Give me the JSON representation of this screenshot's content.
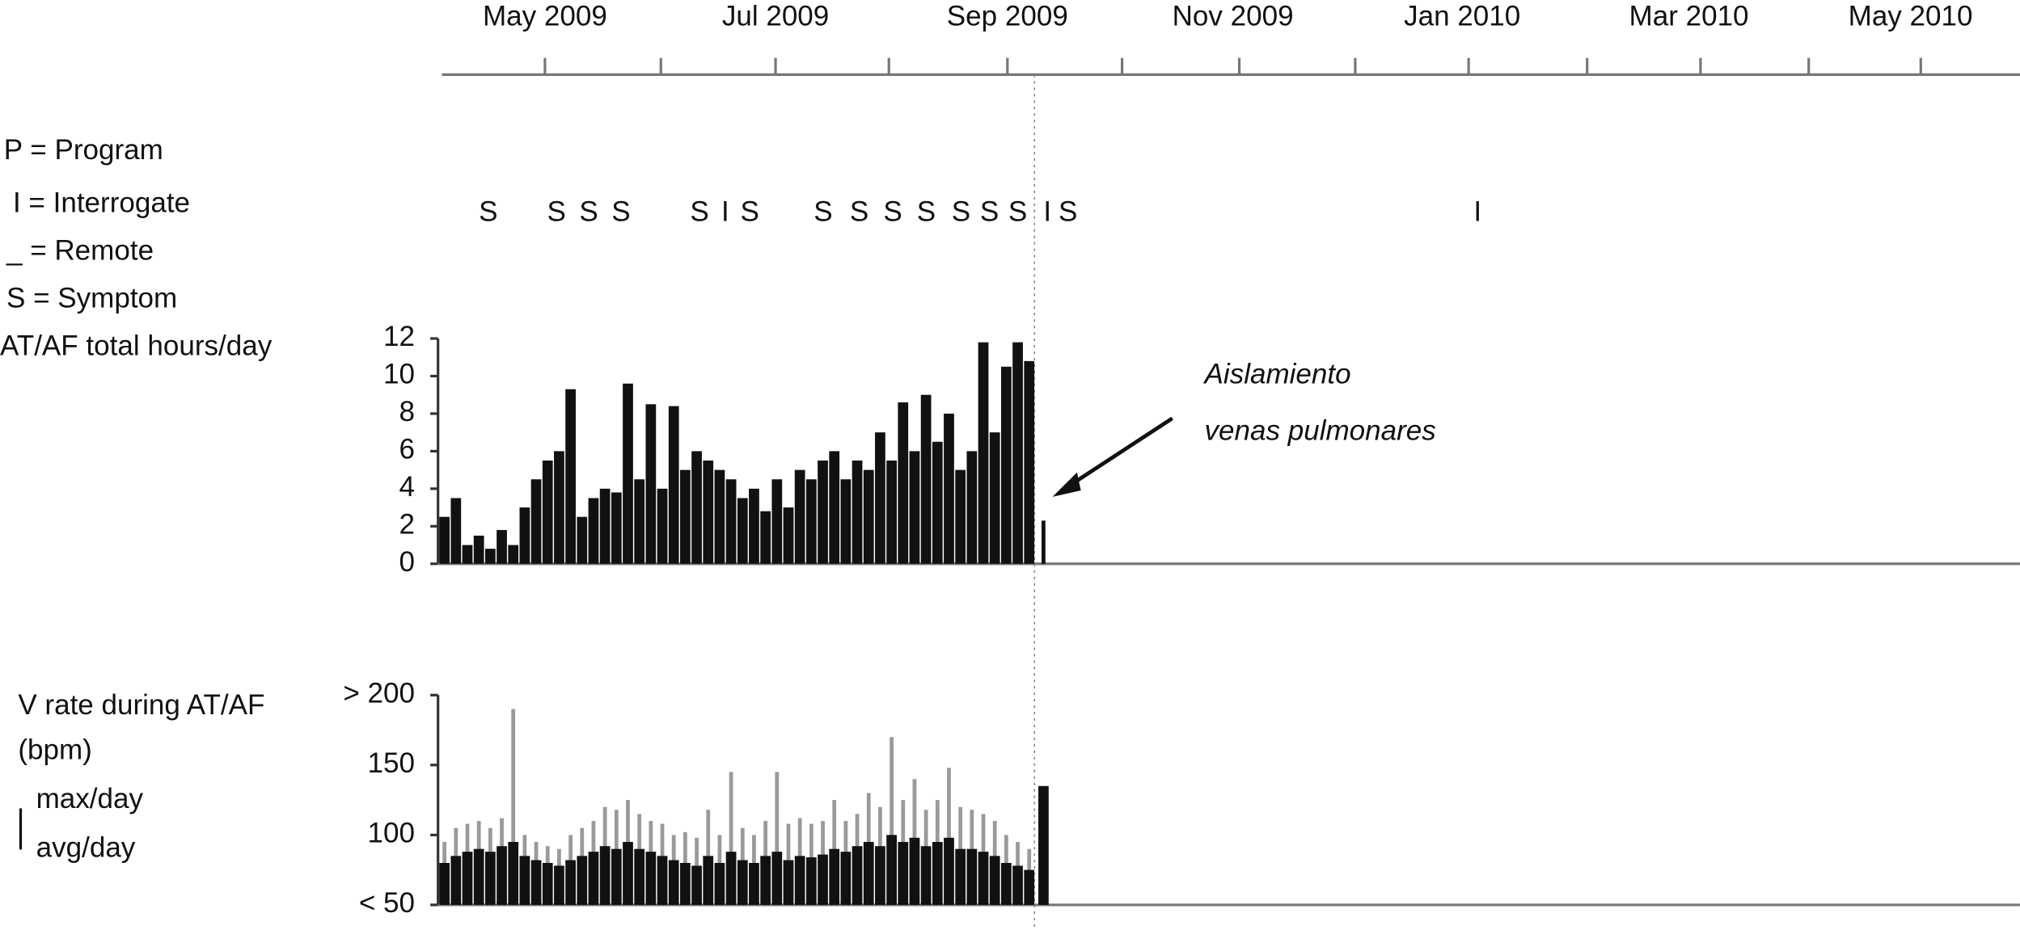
{
  "time_axis": {
    "labels": [
      "May 2009",
      "Jul 2009",
      "Sep 2009",
      "Nov 2009",
      "Jan 2010",
      "Mar 2010",
      "May 2010"
    ]
  },
  "legend": [
    "P = Program",
    "I = Interrogate",
    "_ = Remote",
    "S = Symptom"
  ],
  "events": [
    "S",
    "S",
    "S",
    "S",
    "S",
    "I",
    "S",
    "S",
    "S",
    "S",
    "S",
    "S",
    "S",
    "S",
    "I",
    "S",
    "I"
  ],
  "annotation": [
    "Aislamiento",
    "venas pulmonares"
  ],
  "chart_data": [
    {
      "type": "bar",
      "y_label": "AT/AF total hours/day",
      "categories": [
        null,
        null,
        null,
        null,
        null,
        null,
        null,
        null,
        null,
        null,
        null,
        null,
        null,
        null,
        null,
        null,
        null,
        null,
        null,
        null,
        null,
        null,
        null,
        null,
        null,
        null,
        null,
        null,
        null,
        null,
        null,
        null,
        null,
        null,
        null,
        null,
        null,
        null,
        null,
        null,
        null,
        null,
        null,
        null,
        null,
        null,
        null,
        null,
        null,
        null,
        null,
        null,
        null
      ],
      "values": [
        2.5,
        3.5,
        1,
        1.5,
        0.8,
        1.8,
        1,
        3,
        4.5,
        5.5,
        6,
        9.3,
        2.5,
        3.5,
        4,
        3.8,
        9.6,
        4.5,
        8.5,
        4,
        8.4,
        5,
        6,
        5.5,
        5,
        4.5,
        3.5,
        4,
        2.8,
        4.5,
        3,
        5,
        4.5,
        5.5,
        6,
        4.5,
        5.5,
        5,
        7,
        5.5,
        8.6,
        6,
        9,
        6.5,
        8,
        5,
        6,
        11.8,
        7,
        10.5,
        11.8,
        10.8,
        2.3
      ],
      "color": "#111111",
      "ylim": [
        0,
        12
      ],
      "yticks": [
        0,
        2,
        4,
        6,
        8,
        10,
        12
      ]
    },
    {
      "type": "bar",
      "y_label": [
        "V rate during AT/AF",
        "(bpm)"
      ],
      "categories": [
        null,
        null,
        null,
        null,
        null,
        null,
        null,
        null,
        null,
        null,
        null,
        null,
        null,
        null,
        null,
        null,
        null,
        null,
        null,
        null,
        null,
        null,
        null,
        null,
        null,
        null,
        null,
        null,
        null,
        null,
        null,
        null,
        null,
        null,
        null,
        null,
        null,
        null,
        null,
        null,
        null,
        null,
        null,
        null,
        null,
        null,
        null,
        null,
        null,
        null,
        null,
        null,
        null
      ],
      "series": [
        {
          "name": "max/day",
          "color": "#9a9a9a",
          "values": [
            95,
            105,
            108,
            110,
            105,
            112,
            190,
            100,
            95,
            92,
            90,
            100,
            105,
            110,
            120,
            118,
            125,
            115,
            110,
            108,
            100,
            102,
            98,
            118,
            100,
            145,
            105,
            100,
            110,
            145,
            108,
            112,
            108,
            110,
            125,
            110,
            115,
            130,
            120,
            170,
            125,
            140,
            118,
            125,
            148,
            120,
            118,
            115,
            110,
            100,
            95,
            90,
            null
          ]
        },
        {
          "name": "avg/day",
          "color": "#111111",
          "values": [
            80,
            85,
            88,
            90,
            88,
            92,
            95,
            85,
            82,
            80,
            78,
            82,
            85,
            88,
            92,
            90,
            95,
            90,
            88,
            85,
            82,
            80,
            78,
            85,
            80,
            88,
            82,
            80,
            85,
            88,
            82,
            85,
            84,
            86,
            90,
            88,
            92,
            95,
            92,
            100,
            95,
            98,
            92,
            95,
            98,
            90,
            90,
            88,
            85,
            80,
            78,
            75,
            135
          ]
        }
      ],
      "ylim": [
        50,
        200
      ],
      "yticks": [
        {
          "value": 50,
          "label": "< 50"
        },
        100,
        150,
        {
          "value": 200,
          "label": "> 200"
        }
      ]
    }
  ]
}
